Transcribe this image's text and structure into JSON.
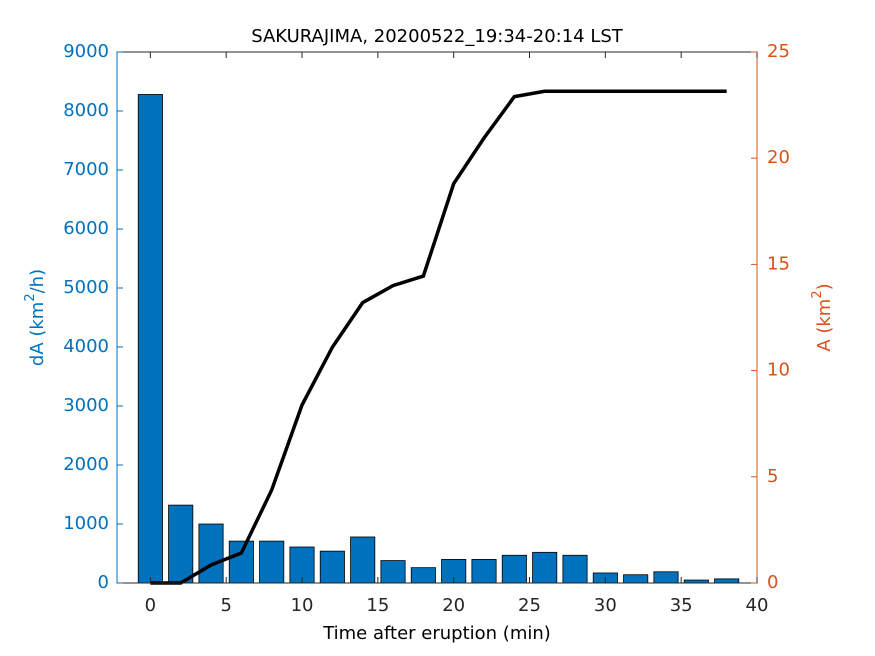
{
  "chart_data": {
    "type": "combo",
    "title": "SAKURAJIMA, 20200522_19:34-20:14 LST",
    "xlabel": "Time after eruption (min)",
    "ylabel": [
      "dA (km",
      "2",
      "/h)"
    ],
    "y2label": [
      "A (km",
      "2",
      ")"
    ],
    "x": [
      0,
      2,
      4,
      6,
      8,
      10,
      12,
      14,
      16,
      18,
      20,
      22,
      24,
      26,
      28,
      30,
      32,
      34,
      36,
      38
    ],
    "series": [
      {
        "type": "bar",
        "axis": "y",
        "color": "#0072bd",
        "values": [
          8280,
          1320,
          1000,
          710,
          710,
          610,
          540,
          780,
          380,
          260,
          400,
          400,
          470,
          520,
          470,
          170,
          140,
          190,
          50,
          70
        ]
      },
      {
        "type": "line",
        "axis": "y2",
        "color": "#000000",
        "values": [
          0,
          0,
          0.85,
          1.41,
          4.38,
          8.38,
          11.1,
          13.2,
          14.0,
          14.45,
          18.8,
          20.95,
          22.9,
          23.15,
          23.15,
          23.15,
          23.15,
          23.15,
          23.15,
          23.15
        ]
      }
    ],
    "xlim": [
      -2.2,
      40
    ],
    "xticks": [
      0,
      5,
      10,
      15,
      20,
      25,
      30,
      35,
      40
    ],
    "ylim": [
      0,
      9000
    ],
    "yticks": [
      0,
      1000,
      2000,
      3000,
      4000,
      5000,
      6000,
      7000,
      8000,
      9000
    ],
    "y2lim": [
      0,
      25
    ],
    "y2ticks": [
      0,
      5,
      10,
      15,
      20,
      25
    ],
    "ycolor": "#0072bd",
    "y2color": "#d95319"
  }
}
